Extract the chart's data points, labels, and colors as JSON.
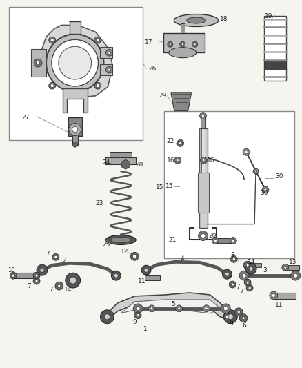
{
  "background_color": "#f5f5f0",
  "line_color": "#404040",
  "dark": "#303030",
  "gray": "#888888",
  "light_gray": "#bbbbbb",
  "figsize": [
    4.38,
    5.33
  ],
  "dpi": 100
}
